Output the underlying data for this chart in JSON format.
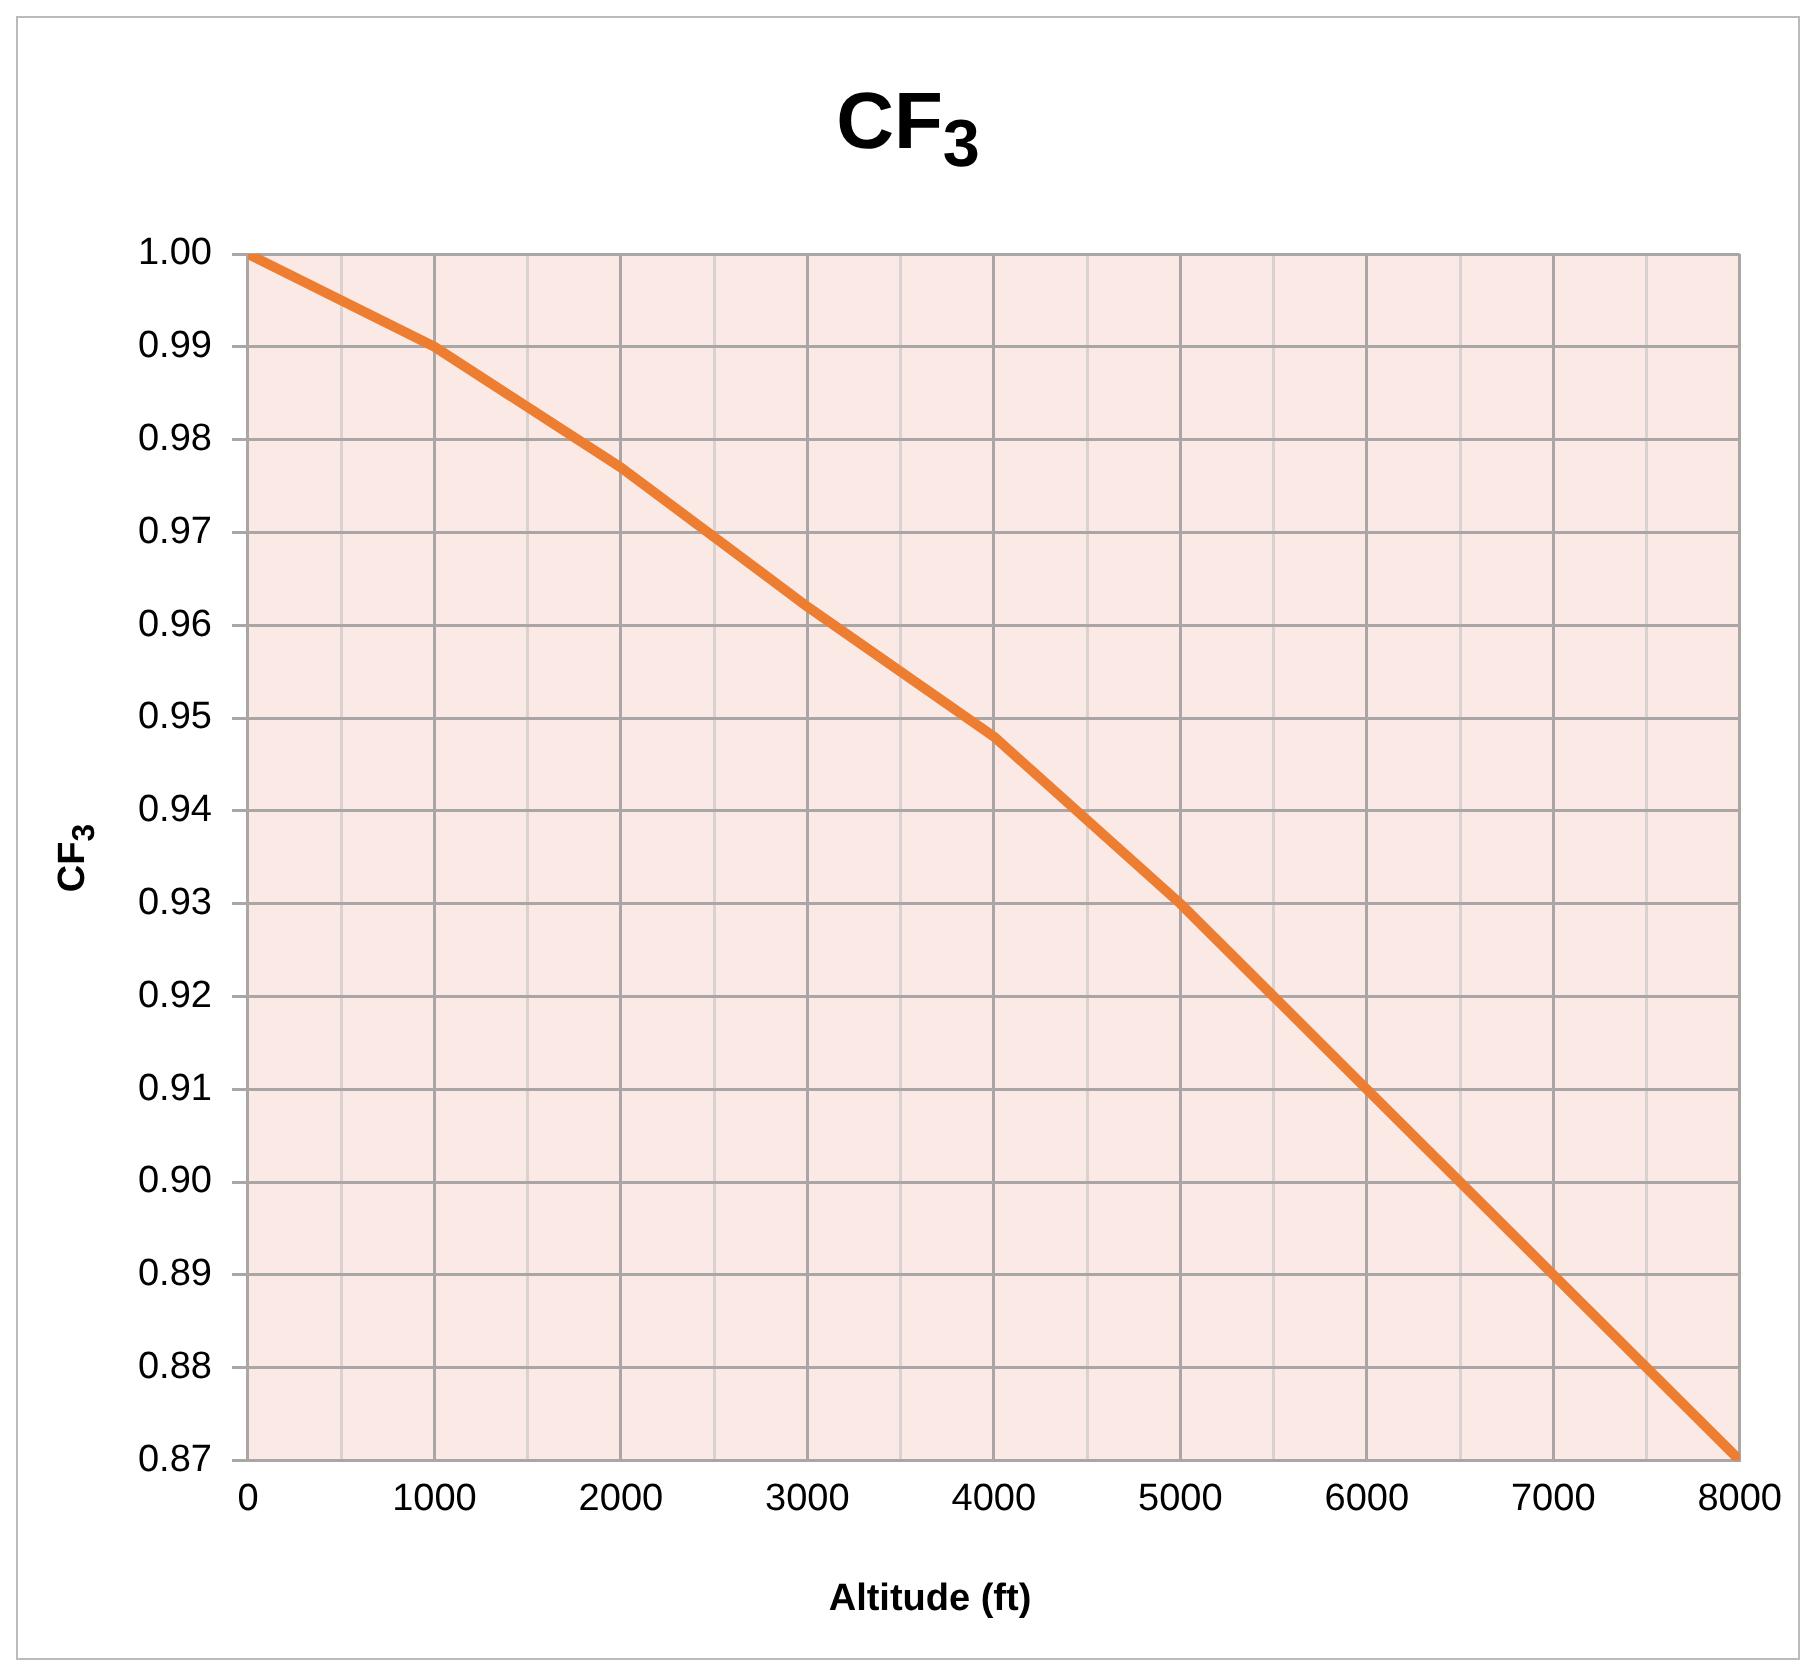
{
  "chart_data": {
    "type": "line",
    "title": "CF$_{3}$",
    "xlabel": "Altitude (ft)",
    "ylabel": "CF$_{3}$",
    "x": [
      0,
      1000,
      2000,
      3000,
      4000,
      5000,
      6000,
      7000,
      8000
    ],
    "series": [
      {
        "color": "#ed7d31",
        "values": [
          1.0,
          0.99,
          0.977,
          0.962,
          0.948,
          0.93,
          0.91,
          0.89,
          0.87
        ]
      }
    ],
    "xlim": [
      0,
      8000
    ],
    "xticks": [
      0,
      {
        "value": 500,
        "label": null
      },
      1000,
      {
        "value": 1500,
        "label": null
      },
      2000,
      {
        "value": 2500,
        "label": null
      },
      3000,
      {
        "value": 3500,
        "label": null
      },
      4000,
      {
        "value": 4500,
        "label": null
      },
      5000,
      {
        "value": 5500,
        "label": null
      },
      6000,
      {
        "value": 6500,
        "label": null
      },
      7000,
      {
        "value": 7500,
        "label": null
      },
      8000
    ],
    "ylim": [
      0.87,
      1.0
    ],
    "yticks": [
      {
        "value": 0.87,
        "label": "0.87"
      },
      {
        "value": 0.88,
        "label": "0.88"
      },
      {
        "value": 0.89,
        "label": "0.89"
      },
      {
        "value": 0.9,
        "label": "0.90"
      },
      {
        "value": 0.91,
        "label": "0.91"
      },
      {
        "value": 0.92,
        "label": "0.92"
      },
      {
        "value": 0.93,
        "label": "0.93"
      },
      {
        "value": 0.94,
        "label": "0.94"
      },
      {
        "value": 0.95,
        "label": "0.95"
      },
      {
        "value": 0.96,
        "label": "0.96"
      },
      {
        "value": 0.97,
        "label": "0.97"
      },
      {
        "value": 0.98,
        "label": "0.98"
      },
      {
        "value": 0.99,
        "label": "0.99"
      },
      {
        "value": 1.0,
        "label": "1.00"
      }
    ],
    "grid": true,
    "legend": false,
    "marker": "none",
    "line_style": "solid"
  }
}
